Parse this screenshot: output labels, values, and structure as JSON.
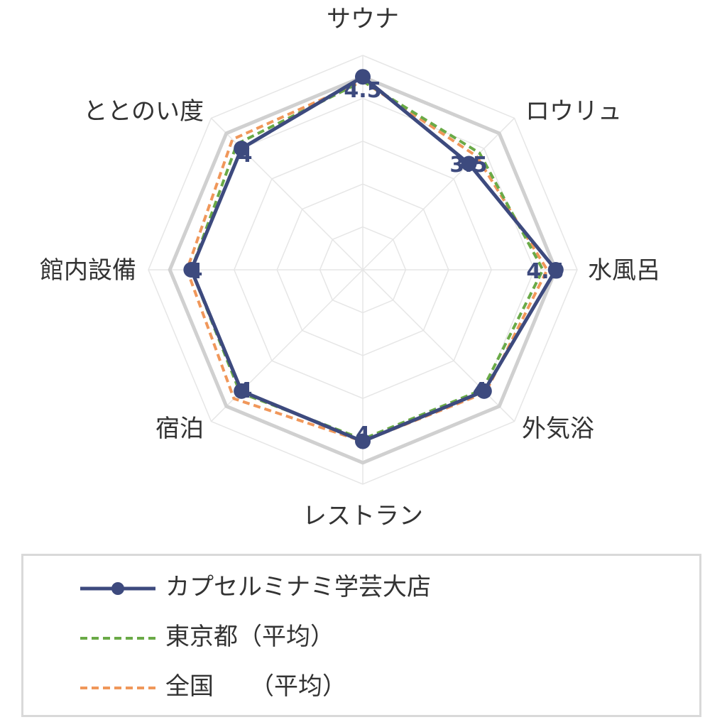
{
  "chart_data": {
    "type": "radar",
    "axes": [
      "サウナ",
      "ロウリュ",
      "水風呂",
      "外気浴",
      "レストラン",
      "宿泊",
      "館内設備",
      "ととのい度"
    ],
    "rmax": 5,
    "rings": 5,
    "series": [
      {
        "name": "カプセルミナミ学芸大店",
        "values": [
          4.5,
          3.5,
          4.5,
          4,
          4,
          4,
          4,
          4
        ],
        "color": "#3d4a7e",
        "style": "solid-marker"
      },
      {
        "name": "東京都（平均）",
        "values": [
          4.4,
          3.85,
          4.2,
          3.95,
          3.95,
          4.05,
          4.0,
          4.15
        ],
        "color": "#6aaa47",
        "style": "dashed"
      },
      {
        "name": "全国　　（平均）",
        "values": [
          4.4,
          3.75,
          4.3,
          4.05,
          4.0,
          4.25,
          4.1,
          4.3
        ],
        "color": "#f0975a",
        "style": "dashed"
      }
    ],
    "value_labels": [
      "4.5",
      "3.5",
      "4.5",
      "4",
      "4",
      "4",
      "4",
      "4"
    ],
    "highlight_ring": 4.5,
    "grid": true,
    "legend_position": "bottom"
  },
  "colors": {
    "grid": "#e6e6e6",
    "outer_ring": "#d0d0d0",
    "value_text": "#3d4a7e"
  },
  "legend": {
    "items": [
      "カプセルミナミ学芸大店",
      "東京都（平均）",
      "全国　　（平均）"
    ]
  }
}
